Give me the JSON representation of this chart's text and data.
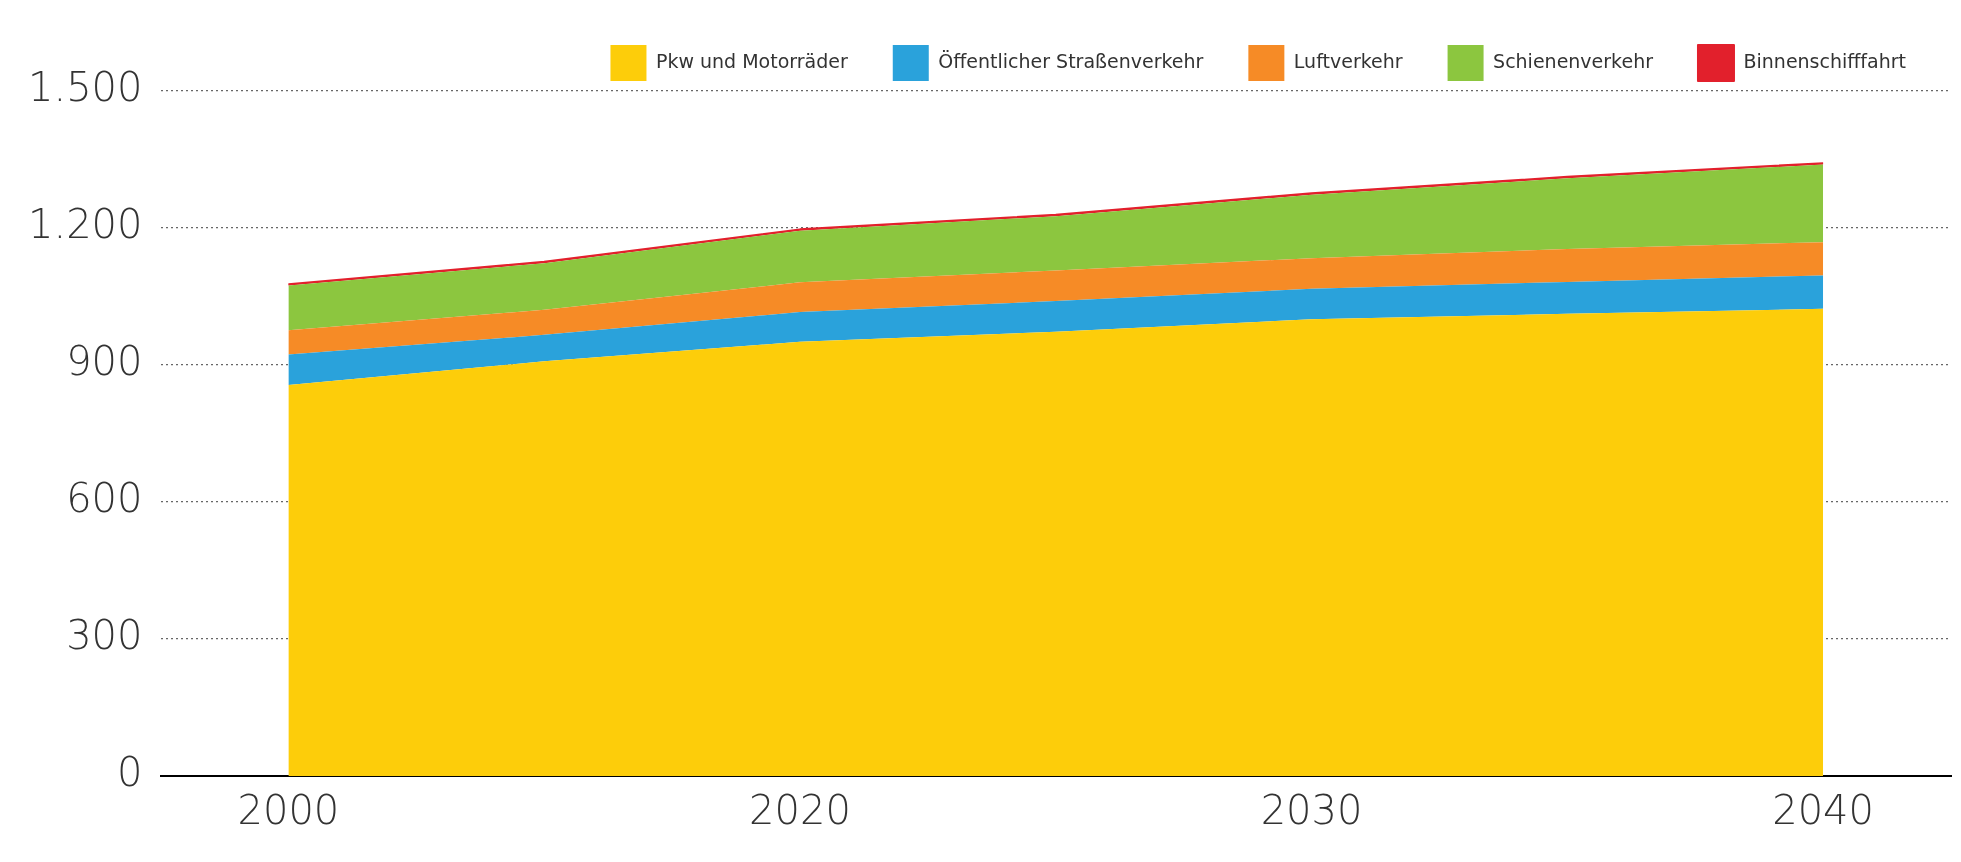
{
  "chart_data": {
    "type": "area",
    "stacked": true,
    "categories": [
      "2000",
      null,
      "2020",
      null,
      "2030",
      null,
      "2040"
    ],
    "series": [
      {
        "name": "Pkw und Motorräder",
        "color": "#fdcd0a",
        "values": [
          856,
          908,
          951,
          973,
          1000,
          1012,
          1023
        ]
      },
      {
        "name": "Öffentlicher Straßenverkehr",
        "color": "#2aa2db",
        "values": [
          67,
          58,
          65,
          67,
          67,
          70,
          73
        ]
      },
      {
        "name": "Luftverkehr",
        "color": "#f68b26",
        "values": [
          53,
          55,
          65,
          67,
          67,
          72,
          73
        ]
      },
      {
        "name": "Schienenverkehr",
        "color": "#8cc63f",
        "values": [
          98,
          102,
          113,
          119,
          139,
          155,
          170
        ]
      },
      {
        "name": "Binnenschifffahrt",
        "color": "#e2202c",
        "values": [
          3,
          3,
          3,
          3,
          3,
          3,
          3
        ]
      }
    ],
    "ylim": [
      0,
      1500
    ],
    "yticks": [
      0,
      300,
      600,
      900,
      {
        "value": 1200,
        "label": "1.200"
      },
      {
        "value": 1500,
        "label": "1.500"
      }
    ],
    "grid": "y",
    "legend": "top"
  }
}
